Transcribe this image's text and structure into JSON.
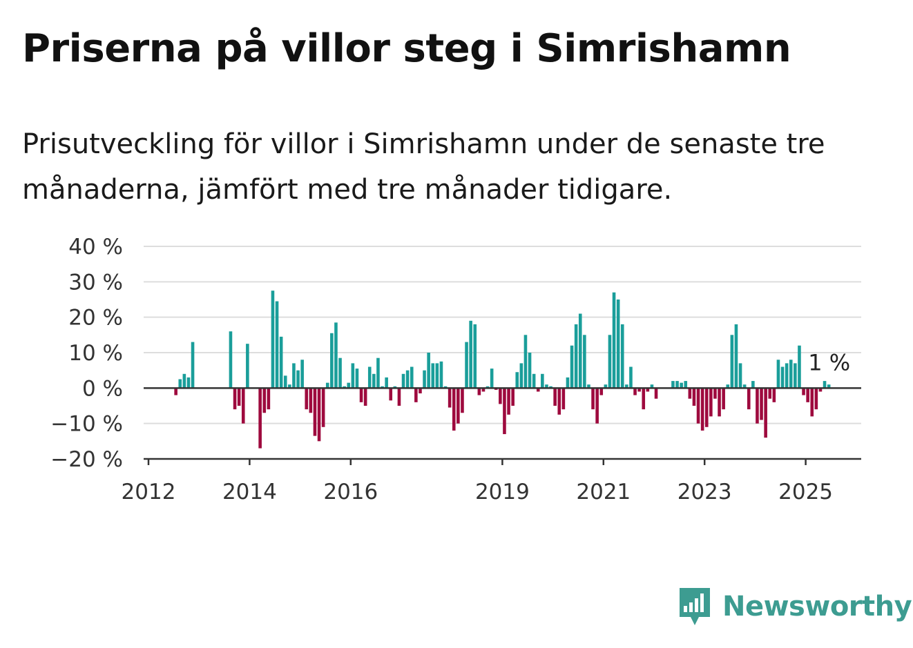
{
  "title": "Priserna på villor steg i Simrishamn",
  "subtitle": "Prisutveckling för villor i Simrishamn under de senaste tre månaderna, jämfört med tre månader tidigare.",
  "brand": {
    "name": "Newsworthy",
    "color": "#3d9c91",
    "icon": "newsworthy-logo-icon"
  },
  "colors": {
    "positive": "#1a9e9a",
    "negative": "#9e0a3e",
    "grid": "#dddddd",
    "axis": "#333333"
  },
  "chart_data": {
    "type": "bar",
    "x_start": "2012-01",
    "frequency": "monthly",
    "ylim": [
      -20,
      40
    ],
    "y_ticks": [
      {
        "value": 40,
        "label": "40 %"
      },
      {
        "value": 30,
        "label": "30 %"
      },
      {
        "value": 20,
        "label": "20 %"
      },
      {
        "value": 10,
        "label": "10 %"
      },
      {
        "value": 0,
        "label": "0 %"
      },
      {
        "value": -10,
        "label": "−10 %"
      },
      {
        "value": -20,
        "label": "−20 %"
      }
    ],
    "x_ticks": [
      {
        "year": 2012,
        "label": "2012"
      },
      {
        "year": 2014,
        "label": "2014"
      },
      {
        "year": 2016,
        "label": "2016"
      },
      {
        "year": 2019,
        "label": "2019"
      },
      {
        "year": 2021,
        "label": "2021"
      },
      {
        "year": 2023,
        "label": "2023"
      },
      {
        "year": 2025,
        "label": "2025"
      }
    ],
    "grid": true,
    "annotation": {
      "text": "1 %",
      "value": 1
    },
    "values": [
      null,
      null,
      null,
      null,
      null,
      null,
      -2,
      2.5,
      4,
      3,
      13,
      null,
      null,
      null,
      null,
      null,
      null,
      null,
      null,
      16,
      -6,
      -5,
      -10,
      12.5,
      null,
      null,
      -17,
      -7,
      -6,
      27.5,
      24.5,
      14.5,
      3.5,
      1,
      7,
      5,
      8,
      -6,
      -7,
      -13.5,
      -15,
      -11,
      1.5,
      15.5,
      18.5,
      8.5,
      0.5,
      1.5,
      7,
      5.5,
      -4,
      -5,
      6,
      4,
      8.5,
      0.5,
      3,
      -3.5,
      0.5,
      -5,
      4,
      5,
      6,
      -4,
      -1.5,
      5,
      10,
      7,
      7,
      7.5,
      0.5,
      -5.5,
      -12,
      -10,
      -7,
      13,
      19,
      18,
      -2,
      -1,
      0.5,
      5.5,
      -0.5,
      -4.5,
      -13,
      -7.5,
      -5,
      4.5,
      7,
      15,
      10,
      4,
      -1,
      4,
      1,
      0.5,
      -5,
      -7.5,
      -6,
      3,
      12,
      18,
      21,
      15,
      1,
      -6,
      -10,
      -2,
      1,
      15,
      27,
      25,
      18,
      1,
      6,
      -2,
      -1,
      -6,
      -1,
      1,
      -3,
      null,
      null,
      null,
      2,
      2,
      1.5,
      2,
      -3,
      -5,
      -10,
      -12,
      -11,
      -8,
      -3,
      -8,
      -6,
      1,
      15,
      18,
      7,
      1,
      -6,
      2,
      -10,
      -9,
      -14,
      -3,
      -4,
      8,
      6,
      7,
      8,
      7,
      12,
      -2,
      -4,
      -8,
      -6,
      -1,
      2,
      1
    ]
  }
}
